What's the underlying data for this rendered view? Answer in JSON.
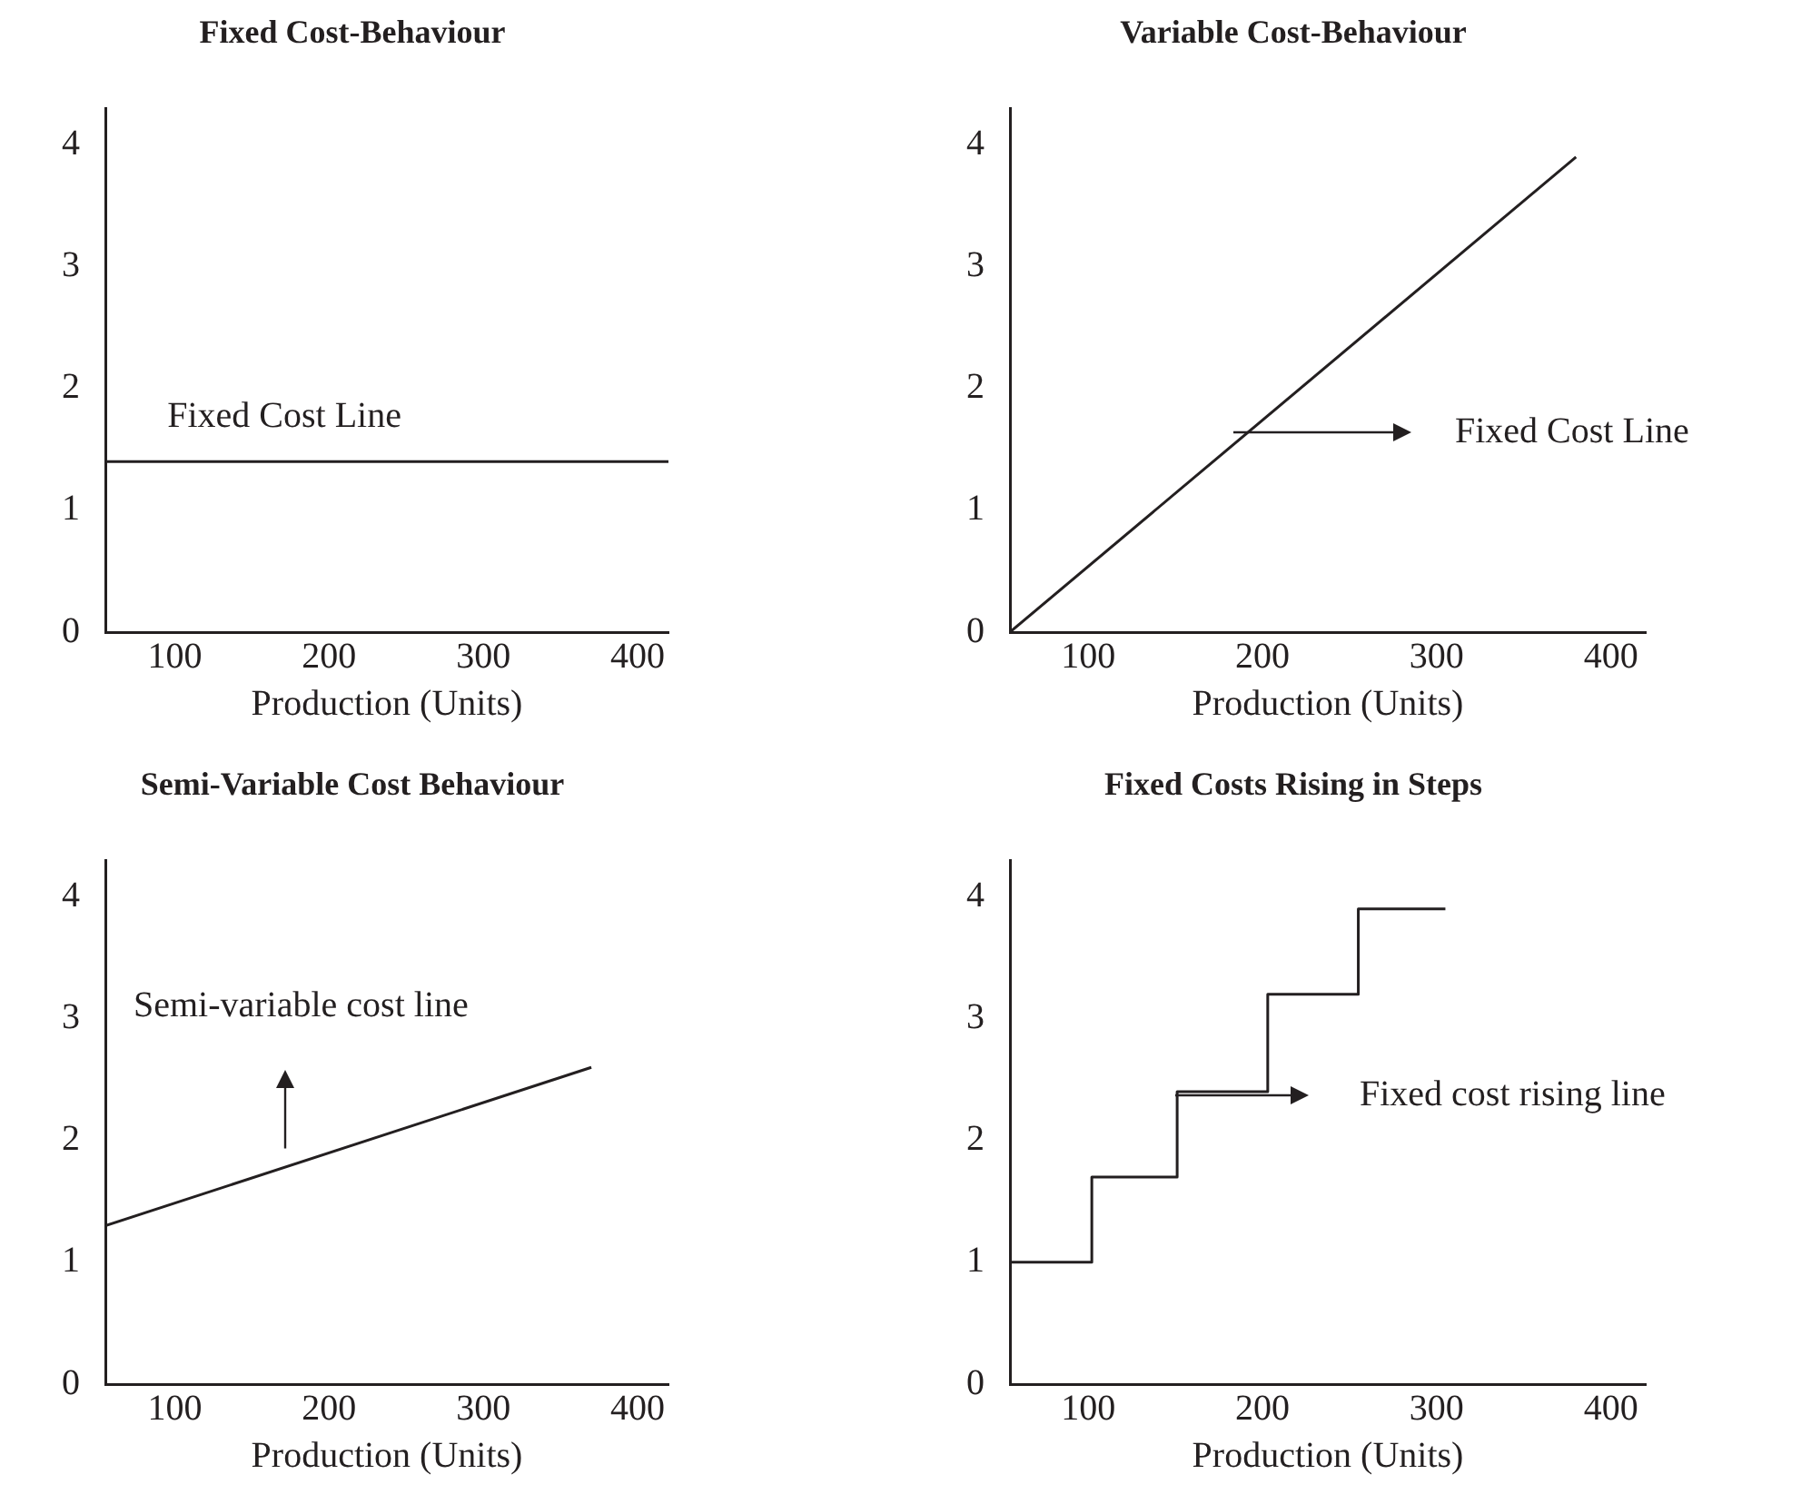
{
  "chart_data": [
    {
      "type": "line",
      "title": "Fixed Cost-Behaviour",
      "xlabel": "Production (Units)",
      "xlim": [
        55,
        420
      ],
      "xticks": [
        100,
        200,
        300,
        400
      ],
      "ylim": [
        0,
        4.3
      ],
      "yticks": [
        0,
        1,
        2,
        3,
        4
      ],
      "series": [
        {
          "color": "#231f20",
          "x": [
            55,
            420
          ],
          "values": [
            1.4,
            1.4
          ]
        }
      ],
      "annotations": [
        "Fixed Cost Line"
      ]
    },
    {
      "type": "line",
      "title": "Variable Cost-Behaviour",
      "xlabel": "Production (Units)",
      "xlim": [
        55,
        420
      ],
      "xticks": [
        100,
        200,
        300,
        400
      ],
      "ylim": [
        0,
        4.3
      ],
      "yticks": [
        0,
        1,
        2,
        3,
        4
      ],
      "series": [
        {
          "color": "#231f20",
          "x": [
            55,
            380
          ],
          "values": [
            0,
            3.9
          ]
        }
      ],
      "annotations": [
        "Fixed Cost Line"
      ]
    },
    {
      "type": "line",
      "title": "Semi-Variable Cost Behaviour",
      "xlabel": "Production (Units)",
      "xlim": [
        55,
        420
      ],
      "xticks": [
        100,
        200,
        300,
        400
      ],
      "ylim": [
        0,
        4.3
      ],
      "yticks": [
        0,
        1,
        2,
        3,
        4
      ],
      "series": [
        {
          "color": "#231f20",
          "x": [
            55,
            370
          ],
          "values": [
            1.3,
            2.6
          ]
        }
      ],
      "annotations": [
        "Semi-variable cost line"
      ]
    },
    {
      "type": "step",
      "title": "Fixed Costs Rising in Steps",
      "xlabel": "Production (Units)",
      "xlim": [
        55,
        420
      ],
      "xticks": [
        100,
        200,
        300,
        400
      ],
      "ylim": [
        0,
        4.3
      ],
      "yticks": [
        0,
        1,
        2,
        3,
        4
      ],
      "series": [
        {
          "color": "#231f20",
          "x": [
            55,
            102,
            151,
            203,
            255,
            305
          ],
          "values": [
            1,
            1.7,
            2.4,
            3.2,
            3.9,
            3.9
          ]
        }
      ],
      "annotations": [
        "Fixed cost rising line"
      ]
    }
  ]
}
